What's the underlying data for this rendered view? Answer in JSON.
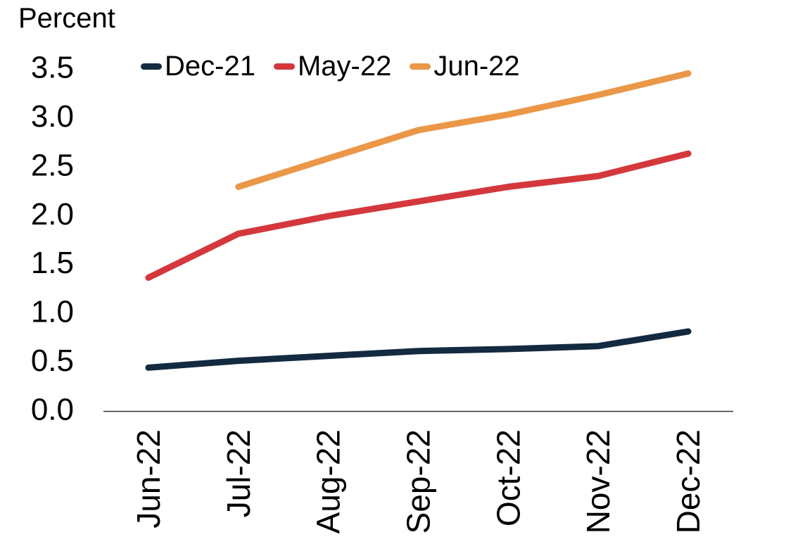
{
  "chart_data": {
    "type": "line",
    "title": "Percent",
    "categories": [
      "Jun-22",
      "Jul-22",
      "Aug-22",
      "Sep-22",
      "Oct-22",
      "Nov-22",
      "Dec-22"
    ],
    "series": [
      {
        "name": "Dec-21",
        "color": "#132a40",
        "values": [
          0.43,
          0.5,
          0.55,
          0.6,
          0.62,
          0.65,
          0.8
        ]
      },
      {
        "name": "May-22",
        "color": "#d4383c",
        "values": [
          1.35,
          1.8,
          1.98,
          2.13,
          2.28,
          2.39,
          2.62
        ]
      },
      {
        "name": "Jun-22",
        "color": "#eb9748",
        "values": [
          null,
          2.28,
          2.57,
          2.86,
          3.02,
          3.22,
          3.44
        ]
      }
    ],
    "ylim": [
      0.0,
      3.5
    ],
    "ytick_step": 0.5,
    "yticks": [
      "0.0",
      "0.5",
      "1.0",
      "1.5",
      "2.0",
      "2.5",
      "3.0",
      "3.5"
    ],
    "xlabel": "",
    "ylabel": "Percent",
    "legend_position": "top",
    "grid": false,
    "axis_color": "#333333",
    "line_width": 9
  }
}
